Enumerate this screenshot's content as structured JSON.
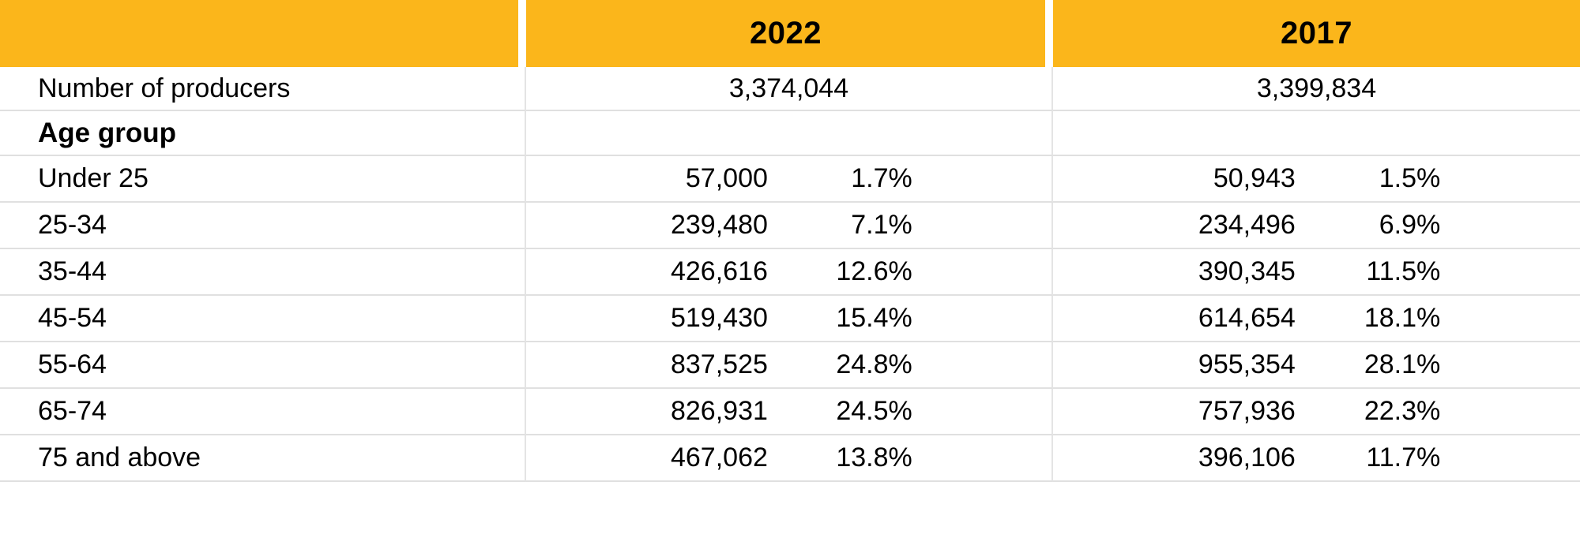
{
  "accent_color": "#FBB61B",
  "grid_line_color": "#E0E0E0",
  "chart_data": {
    "type": "table",
    "columns": [
      "",
      "2022",
      "2017"
    ],
    "producers": {
      "label": "Number of producers",
      "v2022": "3,374,044",
      "v2017": "3,399,834"
    },
    "section_label": "Age group",
    "rows": [
      {
        "label": "Under 25",
        "v2022": "57,000",
        "p2022": "1.7%",
        "v2017": "50,943",
        "p2017": "1.5%"
      },
      {
        "label": "25-34",
        "v2022": "239,480",
        "p2022": "7.1%",
        "v2017": "234,496",
        "p2017": "6.9%"
      },
      {
        "label": "35-44",
        "v2022": "426,616",
        "p2022": "12.6%",
        "v2017": "390,345",
        "p2017": "11.5%"
      },
      {
        "label": "45-54",
        "v2022": "519,430",
        "p2022": "15.4%",
        "v2017": "614,654",
        "p2017": "18.1%"
      },
      {
        "label": "55-64",
        "v2022": "837,525",
        "p2022": "24.8%",
        "v2017": "955,354",
        "p2017": "28.1%"
      },
      {
        "label": "65-74",
        "v2022": "826,931",
        "p2022": "24.5%",
        "v2017": "757,936",
        "p2017": "22.3%"
      },
      {
        "label": "75 and above",
        "v2022": "467,062",
        "p2022": "13.8%",
        "v2017": "396,106",
        "p2017": "11.7%"
      }
    ]
  }
}
